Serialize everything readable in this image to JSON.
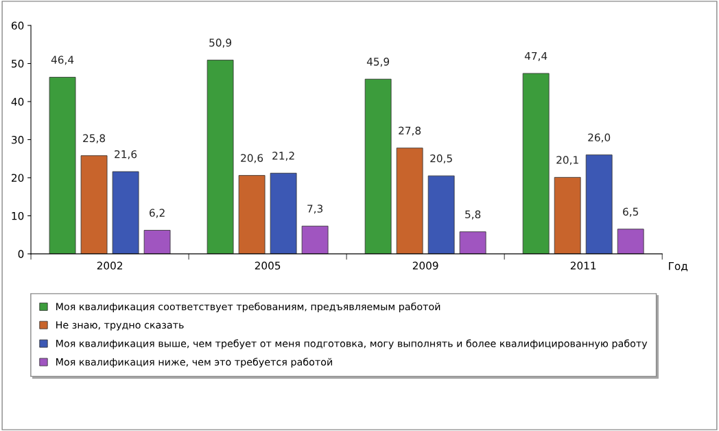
{
  "chart_data": {
    "type": "bar",
    "categories": [
      "2002",
      "2005",
      "2009",
      "2011"
    ],
    "xlabel": "Год",
    "series": [
      {
        "name": "Моя квалификация соответствует требованиям, предъявляемым работой",
        "color": "#3c9c3c",
        "values": [
          46.4,
          50.9,
          45.9,
          47.4
        ],
        "value_labels": [
          "46,4",
          "50,9",
          "45,9",
          "47,4"
        ]
      },
      {
        "name": "Не знаю, трудно сказать",
        "color": "#c8642c",
        "values": [
          25.8,
          20.6,
          27.8,
          20.1
        ],
        "value_labels": [
          "25,8",
          "20,6",
          "27,8",
          "20,1"
        ]
      },
      {
        "name": "Моя квалификация выше, чем требует от меня подготовка, могу выполнять и более квалифицированную работу",
        "color": "#3c58b4",
        "values": [
          21.6,
          21.2,
          20.5,
          26.0
        ],
        "value_labels": [
          "21,6",
          "21,2",
          "20,5",
          "26,0"
        ]
      },
      {
        "name": "Моя квалификация ниже, чем это требуется работой",
        "color": "#a055c0",
        "values": [
          6.2,
          7.3,
          5.8,
          6.5
        ],
        "value_labels": [
          "6,2",
          "7,3",
          "5,8",
          "6,5"
        ]
      }
    ],
    "ylim": [
      0,
      60
    ],
    "yticks": [
      0,
      10,
      20,
      30,
      40,
      50,
      60
    ],
    "grid": false,
    "legend": "bottom"
  }
}
